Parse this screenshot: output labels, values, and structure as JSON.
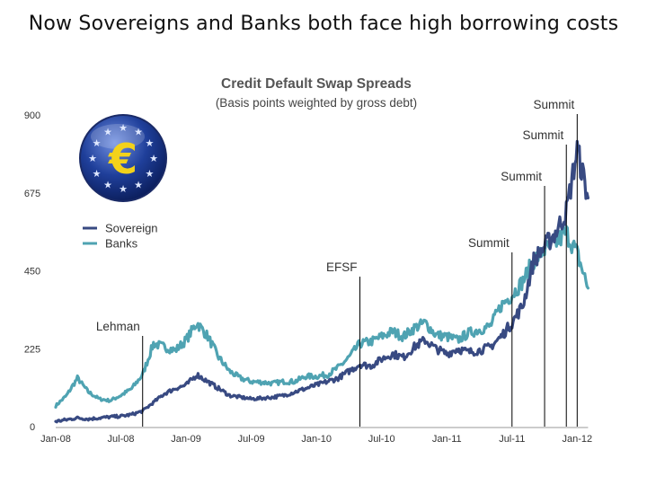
{
  "slide": {
    "title": "Now Sovereigns and Banks both face high borrowing costs"
  },
  "colors": {
    "sovereign": "#384a82",
    "banks": "#4fa3b2",
    "annotation_line": "#000000",
    "logo_blue": "#1f3f9a",
    "logo_yellow": "#f3d21b"
  },
  "logo": {
    "icon": "euro-icon"
  },
  "chart_data": {
    "type": "line",
    "title": "Credit Default Swap Spreads",
    "subtitle": "(Basis points weighted by gross debt)",
    "xlabel": "",
    "ylabel": "",
    "ylim": [
      0,
      900
    ],
    "yticks": [
      0,
      225,
      450,
      675,
      900
    ],
    "xlim": [
      "2008-01",
      "2012-02"
    ],
    "xticks": [
      "Jan-08",
      "Jul-08",
      "Jan-09",
      "Jul-09",
      "Jan-10",
      "Jul-10",
      "Jan-11",
      "Jul-11",
      "Jan-12"
    ],
    "grid": false,
    "legend_position": "left",
    "series": [
      {
        "name": "Sovereign",
        "x": [
          "2008-01",
          "2008-02",
          "2008-03",
          "2008-04",
          "2008-05",
          "2008-06",
          "2008-07",
          "2008-08",
          "2008-09",
          "2008-10",
          "2008-11",
          "2008-12",
          "2009-01",
          "2009-02",
          "2009-03",
          "2009-04",
          "2009-05",
          "2009-06",
          "2009-07",
          "2009-08",
          "2009-09",
          "2009-10",
          "2009-11",
          "2009-12",
          "2010-01",
          "2010-02",
          "2010-03",
          "2010-04",
          "2010-05",
          "2010-06",
          "2010-07",
          "2010-08",
          "2010-09",
          "2010-10",
          "2010-11",
          "2010-12",
          "2011-01",
          "2011-02",
          "2011-03",
          "2011-04",
          "2011-05",
          "2011-06",
          "2011-07",
          "2011-08",
          "2011-09",
          "2011-10",
          "2011-11",
          "2011-12",
          "2012-01",
          "2012-02"
        ],
        "values": [
          15,
          20,
          25,
          22,
          25,
          28,
          30,
          35,
          45,
          70,
          95,
          110,
          120,
          150,
          130,
          110,
          90,
          85,
          80,
          82,
          85,
          90,
          100,
          110,
          120,
          130,
          140,
          160,
          180,
          175,
          195,
          210,
          200,
          230,
          250,
          225,
          210,
          225,
          215,
          220,
          230,
          260,
          300,
          350,
          480,
          520,
          560,
          620,
          800,
          660
        ]
      },
      {
        "name": "Banks",
        "x": [
          "2008-01",
          "2008-02",
          "2008-03",
          "2008-04",
          "2008-05",
          "2008-06",
          "2008-07",
          "2008-08",
          "2008-09",
          "2008-10",
          "2008-11",
          "2008-12",
          "2009-01",
          "2009-02",
          "2009-03",
          "2009-04",
          "2009-05",
          "2009-06",
          "2009-07",
          "2009-08",
          "2009-09",
          "2009-10",
          "2009-11",
          "2009-12",
          "2010-01",
          "2010-02",
          "2010-03",
          "2010-04",
          "2010-05",
          "2010-06",
          "2010-07",
          "2010-08",
          "2010-09",
          "2010-10",
          "2010-11",
          "2010-12",
          "2011-01",
          "2011-02",
          "2011-03",
          "2011-04",
          "2011-05",
          "2011-06",
          "2011-07",
          "2011-08",
          "2011-09",
          "2011-10",
          "2011-11",
          "2011-12",
          "2012-01",
          "2012-02"
        ],
        "values": [
          60,
          90,
          140,
          100,
          80,
          75,
          90,
          110,
          150,
          240,
          230,
          220,
          250,
          300,
          260,
          200,
          160,
          140,
          130,
          128,
          125,
          130,
          130,
          145,
          145,
          150,
          170,
          200,
          240,
          245,
          260,
          275,
          260,
          285,
          300,
          265,
          260,
          250,
          270,
          280,
          290,
          350,
          380,
          420,
          480,
          510,
          530,
          560,
          500,
          400
        ]
      }
    ],
    "annotations": [
      {
        "label": "Lehman",
        "x": "2008-09"
      },
      {
        "label": "EFSF",
        "x": "2010-05"
      },
      {
        "label": "Summit",
        "x": "2011-07"
      },
      {
        "label": "Summit",
        "x": "2011-10"
      },
      {
        "label": "Summit",
        "x": "2011-12"
      },
      {
        "label": "Summit",
        "x": "2012-01"
      }
    ]
  }
}
